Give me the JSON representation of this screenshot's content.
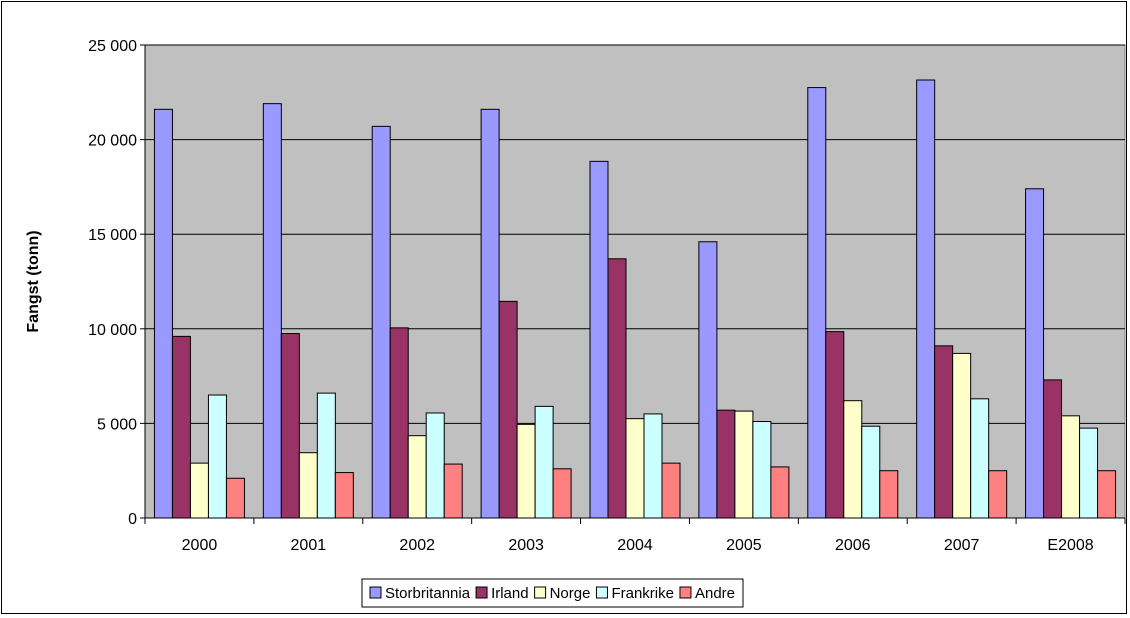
{
  "chart_data": {
    "type": "bar",
    "title": "",
    "xlabel": "",
    "ylabel": "Fangst (tonn)",
    "ylim": [
      0,
      25000
    ],
    "yticks": [
      0,
      5000,
      10000,
      15000,
      20000,
      25000
    ],
    "ytick_labels": [
      "0",
      "5 000",
      "10 000",
      "15 000",
      "20 000",
      "25 000"
    ],
    "grid": true,
    "legend_position": "bottom",
    "categories": [
      "2000",
      "2001",
      "2002",
      "2003",
      "2004",
      "2005",
      "2006",
      "2007",
      "E2008"
    ],
    "series": [
      {
        "name": "Storbritannia",
        "color": "#9999FF",
        "values": [
          21600,
          21900,
          20700,
          21600,
          18850,
          14600,
          22750,
          23150,
          17400
        ]
      },
      {
        "name": "Irland",
        "color": "#993366",
        "values": [
          9600,
          9750,
          10050,
          11450,
          13700,
          5700,
          9850,
          9100,
          7300
        ]
      },
      {
        "name": "Norge",
        "color": "#FFFFCC",
        "values": [
          2900,
          3450,
          4350,
          4950,
          5250,
          5650,
          6200,
          8700,
          5400
        ]
      },
      {
        "name": "Frankrike",
        "color": "#CCFFFF",
        "values": [
          6500,
          6600,
          5550,
          5900,
          5500,
          5100,
          4850,
          6300,
          4750
        ]
      },
      {
        "name": "Andre",
        "color": "#FF8080",
        "values": [
          2100,
          2400,
          2850,
          2600,
          2900,
          2700,
          2500,
          2500,
          2500
        ]
      }
    ]
  }
}
